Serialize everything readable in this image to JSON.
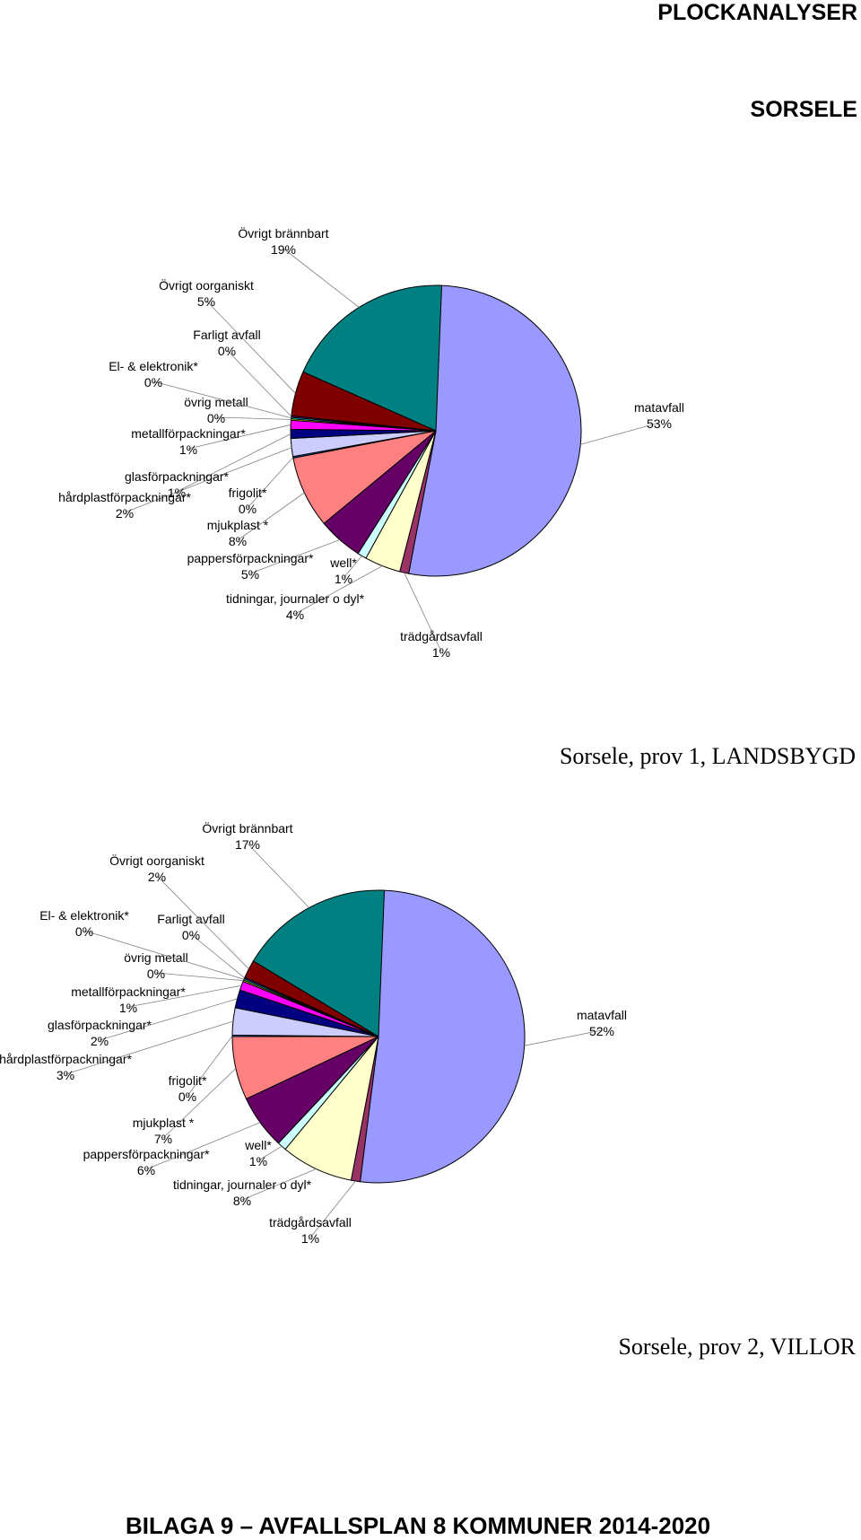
{
  "header": {
    "title": "PLOCKANALYSER",
    "subtitle": "SORSELE"
  },
  "footer": "BILAGA 9 – AVFALLSPLAN 8 KOMMUNER 2014-2020",
  "colors": {
    "matavfall": "#9999FF",
    "trädgårdsavfall": "#993366",
    "tidningar, journaler o dyl*": "#FFFFCC",
    "well*": "#CCFFFF",
    "pappersförpackningar*": "#660066",
    "mjukplast *": "#FF8080",
    "frigolit*": "#0066CC",
    "hårdplastförpackningar*": "#CCCCFF",
    "glasförpackningar*": "#000080",
    "metallförpackningar*": "#FF00FF",
    "övrig metall": "#FFFF00",
    "El- & elektronik*": "#00FFFF",
    "Farligt avfall": "#800080",
    "Övrigt oorganiskt": "#800000",
    "Övrigt brännbart": "#008080"
  },
  "chart_data": [
    {
      "type": "pie",
      "title": "Sorsele, prov 1, LANDSBYGD",
      "categories": [
        "matavfall",
        "trädgårdsavfall",
        "tidningar, journaler o dyl*",
        "well*",
        "pappersförpackningar*",
        "mjukplast *",
        "frigolit*",
        "hårdplastförpackningar*",
        "glasförpackningar*",
        "metallförpackningar*",
        "övrig metall",
        "El- & elektronik*",
        "Farligt avfall",
        "Övrigt oorganiskt",
        "Övrigt brännbart"
      ],
      "values": [
        53,
        1,
        4,
        1,
        5,
        8,
        0,
        2,
        1,
        1,
        0,
        0,
        0,
        5,
        19
      ],
      "labels": [
        "53%",
        "1%",
        "4%",
        "1%",
        "5%",
        "8%",
        "0%",
        "2%",
        "1%",
        "1%",
        "0%",
        "0%",
        "0%",
        "5%",
        "19%"
      ],
      "start": "12 o'clock, clockwise"
    },
    {
      "type": "pie",
      "title": "Sorsele, prov 2, VILLOR",
      "categories": [
        "matavfall",
        "trädgårdsavfall",
        "tidningar, journaler o dyl*",
        "well*",
        "pappersförpackningar*",
        "mjukplast *",
        "frigolit*",
        "hårdplastförpackningar*",
        "glasförpackningar*",
        "metallförpackningar*",
        "övrig metall",
        "El- & elektronik*",
        "Farligt avfall",
        "Övrigt oorganiskt",
        "Övrigt brännbart"
      ],
      "values": [
        52,
        1,
        8,
        1,
        6,
        7,
        0,
        3,
        2,
        1,
        0,
        0,
        0,
        2,
        17
      ],
      "labels": [
        "52%",
        "1%",
        "8%",
        "1%",
        "6%",
        "7%",
        "0%",
        "3%",
        "2%",
        "1%",
        "0%",
        "0%",
        "0%",
        "2%",
        "17%"
      ],
      "start": "12 o'clock, clockwise"
    }
  ]
}
